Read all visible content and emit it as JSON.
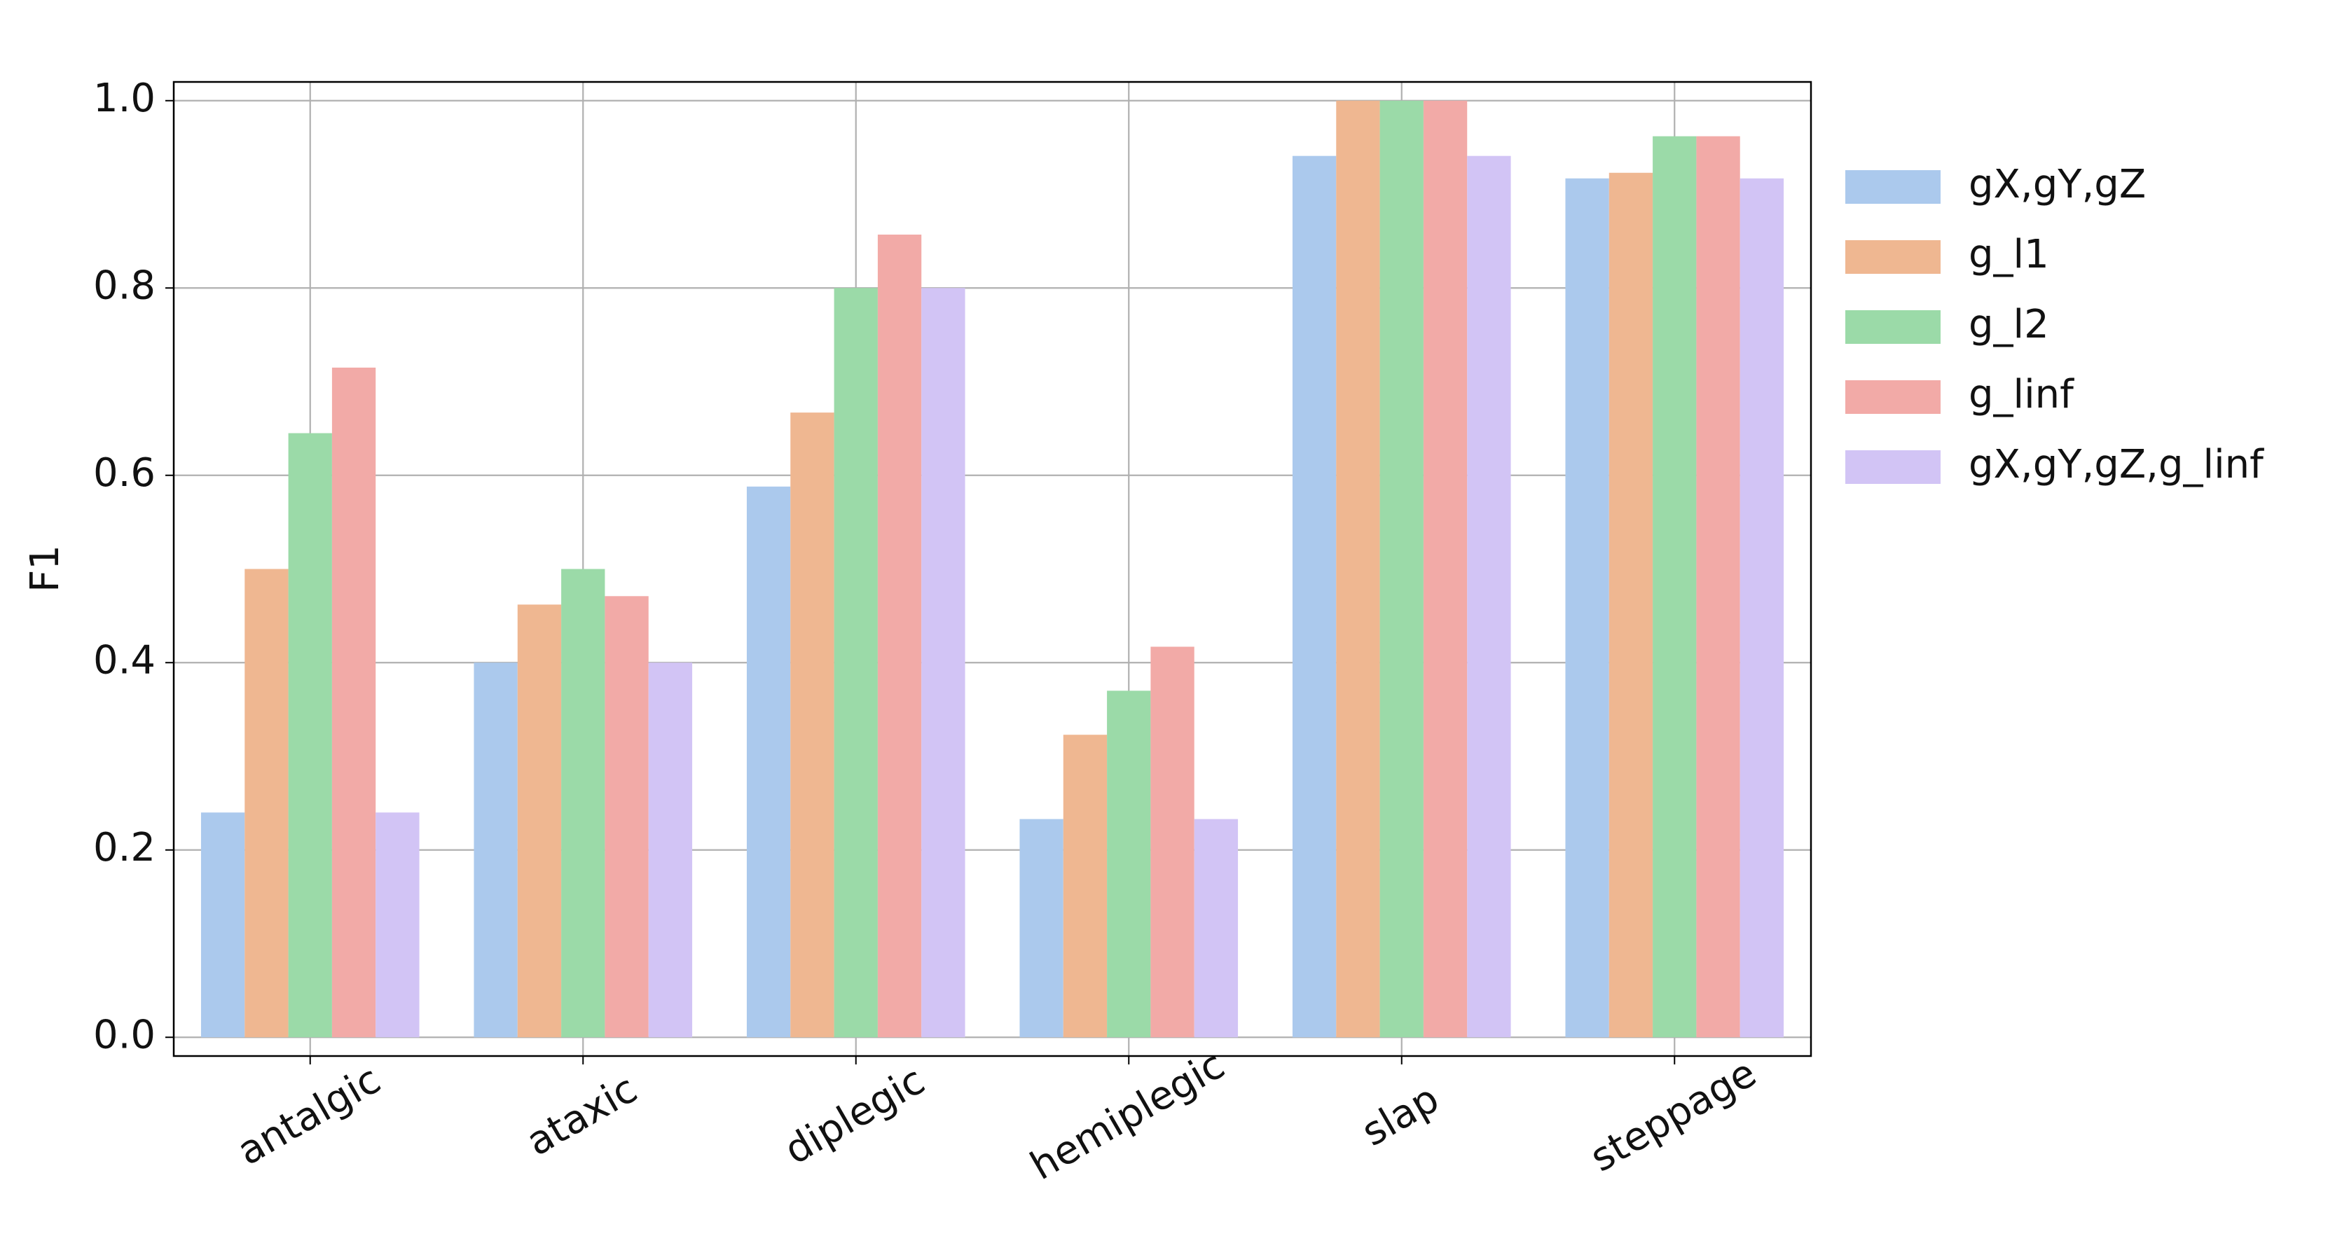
{
  "chart_data": {
    "type": "bar",
    "y_label": "F1",
    "categories": [
      "antalgic",
      "ataxic",
      "diplegic",
      "hemiplegic",
      "slap",
      "steppage"
    ],
    "series": [
      {
        "name": "gX,gY,gZ",
        "color": "#abc9ed",
        "values": [
          0.24,
          0.4,
          0.588,
          0.233,
          0.941,
          0.917
        ]
      },
      {
        "name": "g_l1",
        "color": "#efb791",
        "values": [
          0.5,
          0.462,
          0.667,
          0.323,
          1.0,
          0.923
        ]
      },
      {
        "name": "g_l2",
        "color": "#9bdaa8",
        "values": [
          0.645,
          0.5,
          0.8,
          0.37,
          1.0,
          0.962
        ]
      },
      {
        "name": "g_linf",
        "color": "#f2aaa7",
        "values": [
          0.715,
          0.471,
          0.857,
          0.417,
          1.0,
          0.962
        ]
      },
      {
        "name": "gX,gY,gZ,g_linf",
        "color": "#d2c4f5",
        "values": [
          0.24,
          0.4,
          0.8,
          0.233,
          0.941,
          0.917
        ]
      }
    ],
    "ylim": [
      -0.02,
      1.02
    ],
    "yticks": [
      {
        "value": 0,
        "label": "0.0"
      },
      0.2,
      0.4,
      0.6,
      0.8,
      {
        "value": 1,
        "label": "1.0"
      }
    ],
    "grid": true,
    "legend": "outside-right"
  }
}
